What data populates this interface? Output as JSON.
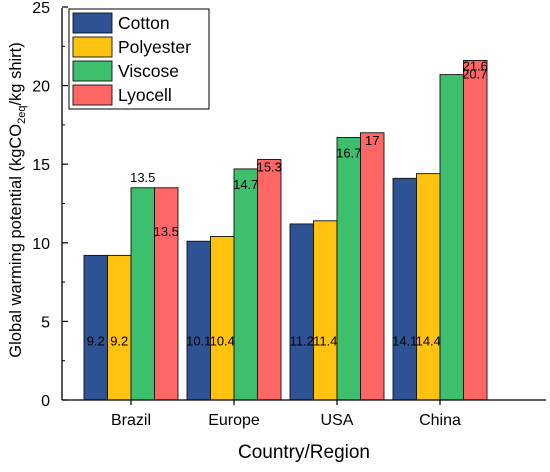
{
  "chart_data": {
    "type": "bar",
    "categories": [
      "Brazil",
      "Europe",
      "USA",
      "China"
    ],
    "series": [
      {
        "name": "Cotton",
        "values": [
          9.2,
          10.1,
          11.2,
          14.1
        ],
        "color": "#2e5395"
      },
      {
        "name": "Polyester",
        "values": [
          9.2,
          10.4,
          11.4,
          14.4
        ],
        "color": "#ffc20e"
      },
      {
        "name": "Viscose",
        "values": [
          13.5,
          14.7,
          16.7,
          20.7
        ],
        "color": "#3dbf6e"
      },
      {
        "name": "Lyocell",
        "values": [
          13.5,
          15.3,
          17,
          21.6
        ],
        "color": "#ff6666"
      }
    ],
    "data_labels": [
      [
        "9.2",
        "9.2",
        "13.5",
        "13.5"
      ],
      [
        "10.1",
        "10.4",
        "14.7",
        "15.3"
      ],
      [
        "11.2",
        "11.4",
        "16.7",
        "17"
      ],
      [
        "14.1",
        "14.4",
        "20.7",
        "21.6"
      ]
    ],
    "xlabel": "Country/Region",
    "ylabel": {
      "main": "Global warming potential (kgCO",
      "sub": "2eq",
      "tail": "/kg shirt)"
    },
    "yticks": [
      "0",
      "5",
      "10",
      "15",
      "20",
      "25"
    ],
    "ylim": [
      0,
      25
    ],
    "legend_position": "top-left",
    "grid": false
  }
}
